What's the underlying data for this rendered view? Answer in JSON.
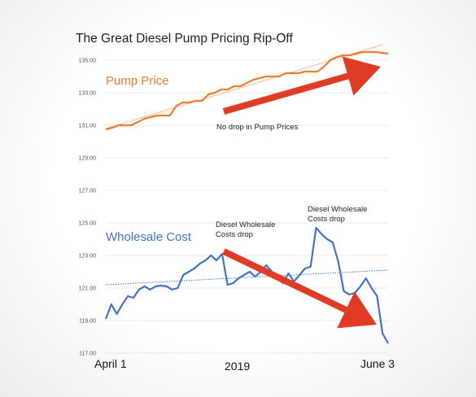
{
  "chart_data": {
    "type": "line",
    "title": "The Great Diesel Pump Pricing Rip-Off",
    "x_start_label": "April 1",
    "x_mid_label": "2019",
    "x_end_label": "June 3",
    "ylim": [
      117,
      136
    ],
    "y_ticks": [
      "117.00",
      "119.00",
      "121.00",
      "123.00",
      "125.00",
      "127.00",
      "129.00",
      "131.00",
      "133.00",
      "135.00"
    ],
    "grid": true,
    "series": [
      {
        "name": "Pump Price",
        "color": "#ED7D31",
        "values": [
          130.75,
          130.85,
          131.0,
          131.0,
          131.0,
          131.2,
          131.4,
          131.5,
          131.6,
          131.6,
          131.6,
          132.2,
          132.4,
          132.4,
          132.5,
          132.5,
          132.9,
          133.0,
          133.2,
          133.2,
          133.4,
          133.4,
          133.6,
          133.8,
          133.9,
          134.0,
          134.0,
          134.0,
          134.2,
          134.2,
          134.2,
          134.3,
          134.3,
          134.3,
          134.6,
          135.0,
          135.2,
          135.3,
          135.3,
          135.4,
          135.5,
          135.5,
          135.5,
          135.45,
          135.4
        ],
        "trend": [
          130.8,
          135.95
        ]
      },
      {
        "name": "Wholesale Cost",
        "color": "#4472C4",
        "values": [
          119.1,
          120.0,
          119.4,
          120.0,
          120.5,
          120.4,
          120.9,
          121.1,
          120.9,
          121.1,
          121.15,
          121.1,
          120.9,
          121.0,
          121.8,
          122.0,
          122.2,
          122.5,
          122.7,
          123.0,
          122.7,
          123.1,
          121.2,
          121.3,
          121.6,
          121.8,
          122.0,
          121.7,
          122.0,
          122.4,
          122.0,
          121.6,
          121.3,
          121.9,
          121.4,
          121.8,
          122.2,
          122.3,
          124.7,
          124.3,
          124.0,
          123.8,
          122.6,
          120.8,
          120.6,
          120.7,
          121.1,
          121.6,
          121.0,
          120.5,
          118.2,
          117.6
        ],
        "trend": [
          121.2,
          122.1
        ]
      }
    ],
    "annotations": [
      {
        "text": "No drop in Pump Prices"
      },
      {
        "text_lines": [
          "Diesel Wholesale",
          "Costs drop"
        ]
      },
      {
        "text_lines": [
          "Diesel Wholesale",
          "Costs drop"
        ]
      }
    ],
    "arrow_color": "#E03C25"
  }
}
